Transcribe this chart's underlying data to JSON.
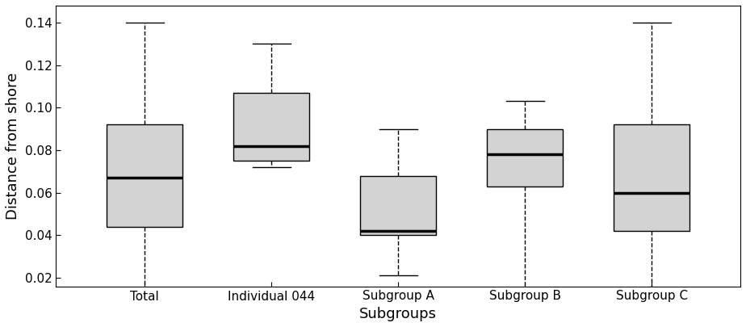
{
  "groups": [
    "Total",
    "Individual 044",
    "Subgroup A",
    "Subgroup B",
    "Subgroup C"
  ],
  "box_stats": [
    {
      "whislo": 0.01,
      "q1": 0.044,
      "med": 0.067,
      "q3": 0.092,
      "whishi": 0.14
    },
    {
      "whislo": 0.072,
      "q1": 0.075,
      "med": 0.082,
      "q3": 0.107,
      "whishi": 0.13
    },
    {
      "whislo": 0.021,
      "q1": 0.04,
      "med": 0.042,
      "q3": 0.068,
      "whishi": 0.09
    },
    {
      "whislo": 0.01,
      "q1": 0.063,
      "med": 0.078,
      "q3": 0.09,
      "whishi": 0.103
    },
    {
      "whislo": 0.01,
      "q1": 0.042,
      "med": 0.06,
      "q3": 0.092,
      "whishi": 0.14
    }
  ],
  "box_color": "#d3d3d3",
  "median_color": "#000000",
  "whisker_color": "#000000",
  "box_edge_color": "#000000",
  "ylabel": "Distance from shore",
  "xlabel": "Subgroups",
  "ylim": [
    0.016,
    0.148
  ],
  "yticks": [
    0.02,
    0.04,
    0.06,
    0.08,
    0.1,
    0.12,
    0.14
  ],
  "background_color": "#ffffff",
  "label_fontsize": 13,
  "tick_fontsize": 11
}
